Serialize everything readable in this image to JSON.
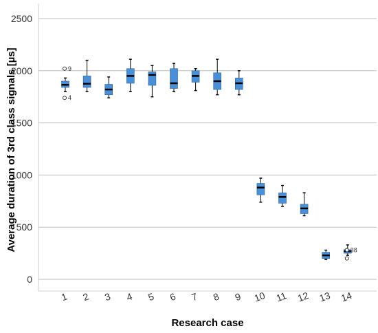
{
  "chart_data": {
    "type": "boxplot",
    "xlabel": "Research case",
    "ylabel": "Average duration of 3rd class signals [µs]",
    "ylim": [
      0,
      2500
    ],
    "yticks": [
      0,
      500,
      1000,
      1500,
      2000,
      2500
    ],
    "grid": true,
    "box_color": "#4a90d9",
    "categories": [
      "1",
      "2",
      "3",
      "4",
      "5",
      "6",
      "7",
      "8",
      "9",
      "10",
      "11",
      "12",
      "13",
      "14"
    ],
    "boxes": [
      {
        "category": "1",
        "min": 1800,
        "q1": 1840,
        "median": 1865,
        "q3": 1900,
        "max": 1930
      },
      {
        "category": "2",
        "min": 1800,
        "q1": 1840,
        "median": 1875,
        "q3": 1950,
        "max": 2100
      },
      {
        "category": "3",
        "min": 1740,
        "q1": 1770,
        "median": 1820,
        "q3": 1870,
        "max": 1940
      },
      {
        "category": "4",
        "min": 1800,
        "q1": 1880,
        "median": 1950,
        "q3": 2020,
        "max": 2110
      },
      {
        "category": "5",
        "min": 1750,
        "q1": 1860,
        "median": 1960,
        "q3": 1990,
        "max": 2050
      },
      {
        "category": "6",
        "min": 1800,
        "q1": 1830,
        "median": 1880,
        "q3": 2020,
        "max": 2070
      },
      {
        "category": "7",
        "min": 1810,
        "q1": 1890,
        "median": 1950,
        "q3": 2000,
        "max": 2020
      },
      {
        "category": "8",
        "min": 1770,
        "q1": 1820,
        "median": 1900,
        "q3": 1980,
        "max": 2110
      },
      {
        "category": "9",
        "min": 1770,
        "q1": 1820,
        "median": 1880,
        "q3": 1930,
        "max": 2000
      },
      {
        "category": "10",
        "min": 740,
        "q1": 810,
        "median": 880,
        "q3": 920,
        "max": 970
      },
      {
        "category": "11",
        "min": 700,
        "q1": 730,
        "median": 790,
        "q3": 830,
        "max": 900
      },
      {
        "category": "12",
        "min": 610,
        "q1": 630,
        "median": 680,
        "q3": 720,
        "max": 830
      },
      {
        "category": "13",
        "min": 190,
        "q1": 200,
        "median": 230,
        "q3": 260,
        "max": 280
      },
      {
        "category": "14",
        "min": 230,
        "q1": 250,
        "median": 270,
        "q3": 285,
        "max": 330
      }
    ],
    "outliers": [
      {
        "category": "1",
        "value": 2020,
        "label": "9"
      },
      {
        "category": "1",
        "value": 1740,
        "label": "4"
      },
      {
        "category": "14",
        "value": 200,
        "label": ""
      },
      {
        "category": "14",
        "value": 280,
        "label": "38"
      }
    ]
  }
}
